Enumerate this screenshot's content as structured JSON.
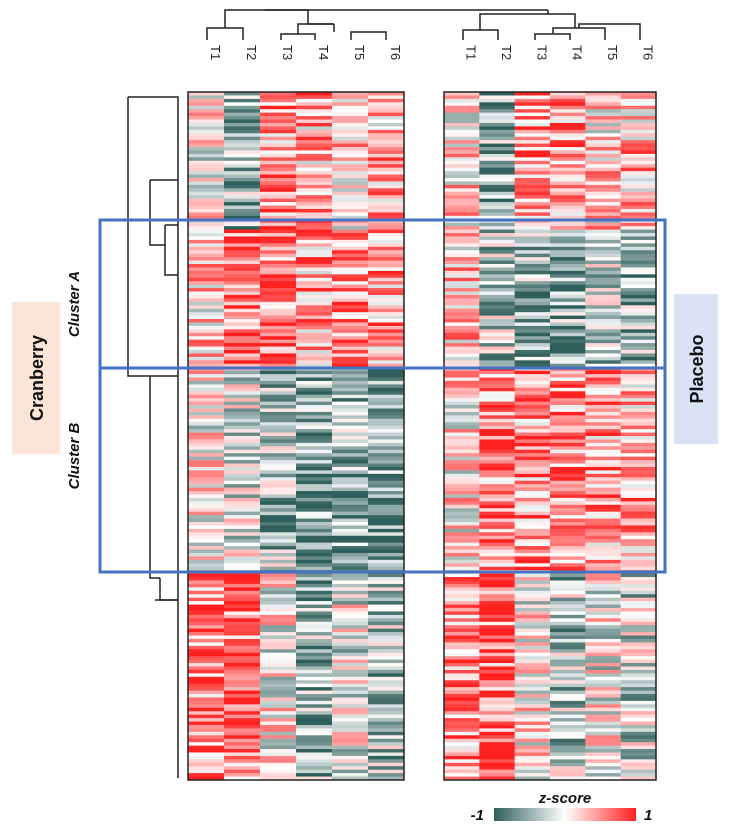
{
  "chart_data": {
    "type": "heatmap",
    "panels": [
      {
        "name": "Cranberry",
        "columns": [
          "T1",
          "T2",
          "T3",
          "T4",
          "T5",
          "T6"
        ]
      },
      {
        "name": "Placebo",
        "columns": [
          "T1",
          "T2",
          "T3",
          "T4",
          "T5",
          "T6"
        ]
      }
    ],
    "row_blocks": [
      {
        "label": "",
        "rows": 40,
        "column_means": {
          "Cranberry": [
            0.0,
            -0.45,
            0.5,
            0.35,
            0.15,
            0.3
          ],
          "Placebo": [
            0.1,
            -0.5,
            0.45,
            0.5,
            0.15,
            0.3
          ]
        }
      },
      {
        "label": "Cluster A",
        "rows": 40,
        "column_means": {
          "Cranberry": [
            0.2,
            0.6,
            0.6,
            0.4,
            0.55,
            0.4
          ],
          "Placebo": [
            0.25,
            -0.3,
            -0.5,
            -0.55,
            -0.3,
            -0.45
          ]
        }
      },
      {
        "label": "Cluster B",
        "rows": 60,
        "column_means": {
          "Cranberry": [
            0.05,
            -0.1,
            -0.4,
            -0.6,
            -0.5,
            -0.65
          ],
          "Placebo": [
            0.1,
            0.55,
            0.5,
            0.5,
            0.45,
            0.35
          ]
        }
      },
      {
        "label": "",
        "rows": 60,
        "column_means": {
          "Cranberry": [
            0.55,
            0.65,
            0.0,
            -0.45,
            -0.1,
            -0.35
          ],
          "Placebo": [
            0.5,
            0.7,
            0.05,
            -0.35,
            -0.05,
            -0.25
          ]
        }
      }
    ],
    "colorscale": {
      "title": "z-score",
      "min": -1,
      "max": 1,
      "min_label": "-1",
      "max_label": "1",
      "low_color": "#2f5f5a",
      "mid_color": "#ffffff",
      "high_color": "#ff2020"
    },
    "highlight_box_color": "#4472c4"
  },
  "labels": {
    "cranberry": "Cranberry",
    "placebo": "Placebo",
    "cluster_a": "Cluster A",
    "cluster_b": "Cluster B"
  },
  "colors": {
    "cranberry_bg": "#fbe5d6",
    "placebo_bg": "#dae3f3"
  }
}
